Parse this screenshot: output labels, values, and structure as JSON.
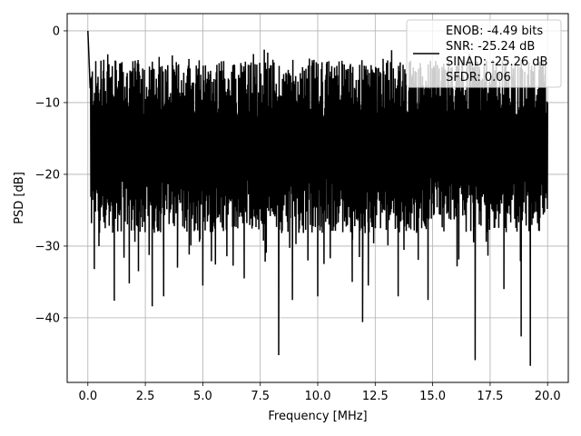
{
  "chart_data": {
    "type": "line",
    "title": "",
    "xlabel": "Frequency [MHz]",
    "ylabel": "PSD [dB]",
    "xlim": [
      -0.9,
      20.9
    ],
    "ylim": [
      -49.0,
      2.4
    ],
    "x_ticks": [
      0.0,
      2.5,
      5.0,
      7.5,
      10.0,
      12.5,
      15.0,
      17.5,
      20.0
    ],
    "x_tick_labels": [
      "0.0",
      "2.5",
      "5.0",
      "7.5",
      "10.0",
      "12.5",
      "15.0",
      "17.5",
      "20.0"
    ],
    "y_ticks": [
      0,
      -10,
      -20,
      -30,
      -40
    ],
    "y_tick_labels": [
      "0",
      "−10",
      "−20",
      "−30",
      "−40"
    ],
    "grid": true,
    "legend_position": "top-right",
    "line_color": "#000000",
    "series": [
      {
        "name_lines": [
          "ENOB: -4.49 bits",
          "SNR: -25.24 dB",
          "SINAD: -25.26 dB",
          "SFDR: 0.06"
        ],
        "summary": {
          "floor_max_db": -2.5,
          "typical_high_db": -8,
          "typical_low_db": -25
        },
        "peaks": [
          {
            "x": 0.0,
            "y": 0.0
          },
          {
            "x": 0.05,
            "y": -4.0
          },
          {
            "x": 0.1,
            "y": -8.0
          }
        ],
        "deep_dips": [
          {
            "x": 0.28,
            "y": -33.2
          },
          {
            "x": 1.15,
            "y": -37.6
          },
          {
            "x": 1.8,
            "y": -35.2
          },
          {
            "x": 2.2,
            "y": -33.5
          },
          {
            "x": 2.8,
            "y": -38.4
          },
          {
            "x": 3.3,
            "y": -37.0
          },
          {
            "x": 3.9,
            "y": -33.0
          },
          {
            "x": 5.0,
            "y": -35.5
          },
          {
            "x": 6.8,
            "y": -34.5
          },
          {
            "x": 8.3,
            "y": -45.2
          },
          {
            "x": 8.9,
            "y": -37.5
          },
          {
            "x": 10.0,
            "y": -37.0
          },
          {
            "x": 11.5,
            "y": -35.0
          },
          {
            "x": 11.95,
            "y": -40.6
          },
          {
            "x": 12.2,
            "y": -35.5
          },
          {
            "x": 13.5,
            "y": -37.0
          },
          {
            "x": 14.8,
            "y": -37.5
          },
          {
            "x": 16.85,
            "y": -45.9
          },
          {
            "x": 18.1,
            "y": -36.0
          },
          {
            "x": 18.85,
            "y": -42.6
          },
          {
            "x": 19.25,
            "y": -46.7
          }
        ]
      }
    ]
  }
}
